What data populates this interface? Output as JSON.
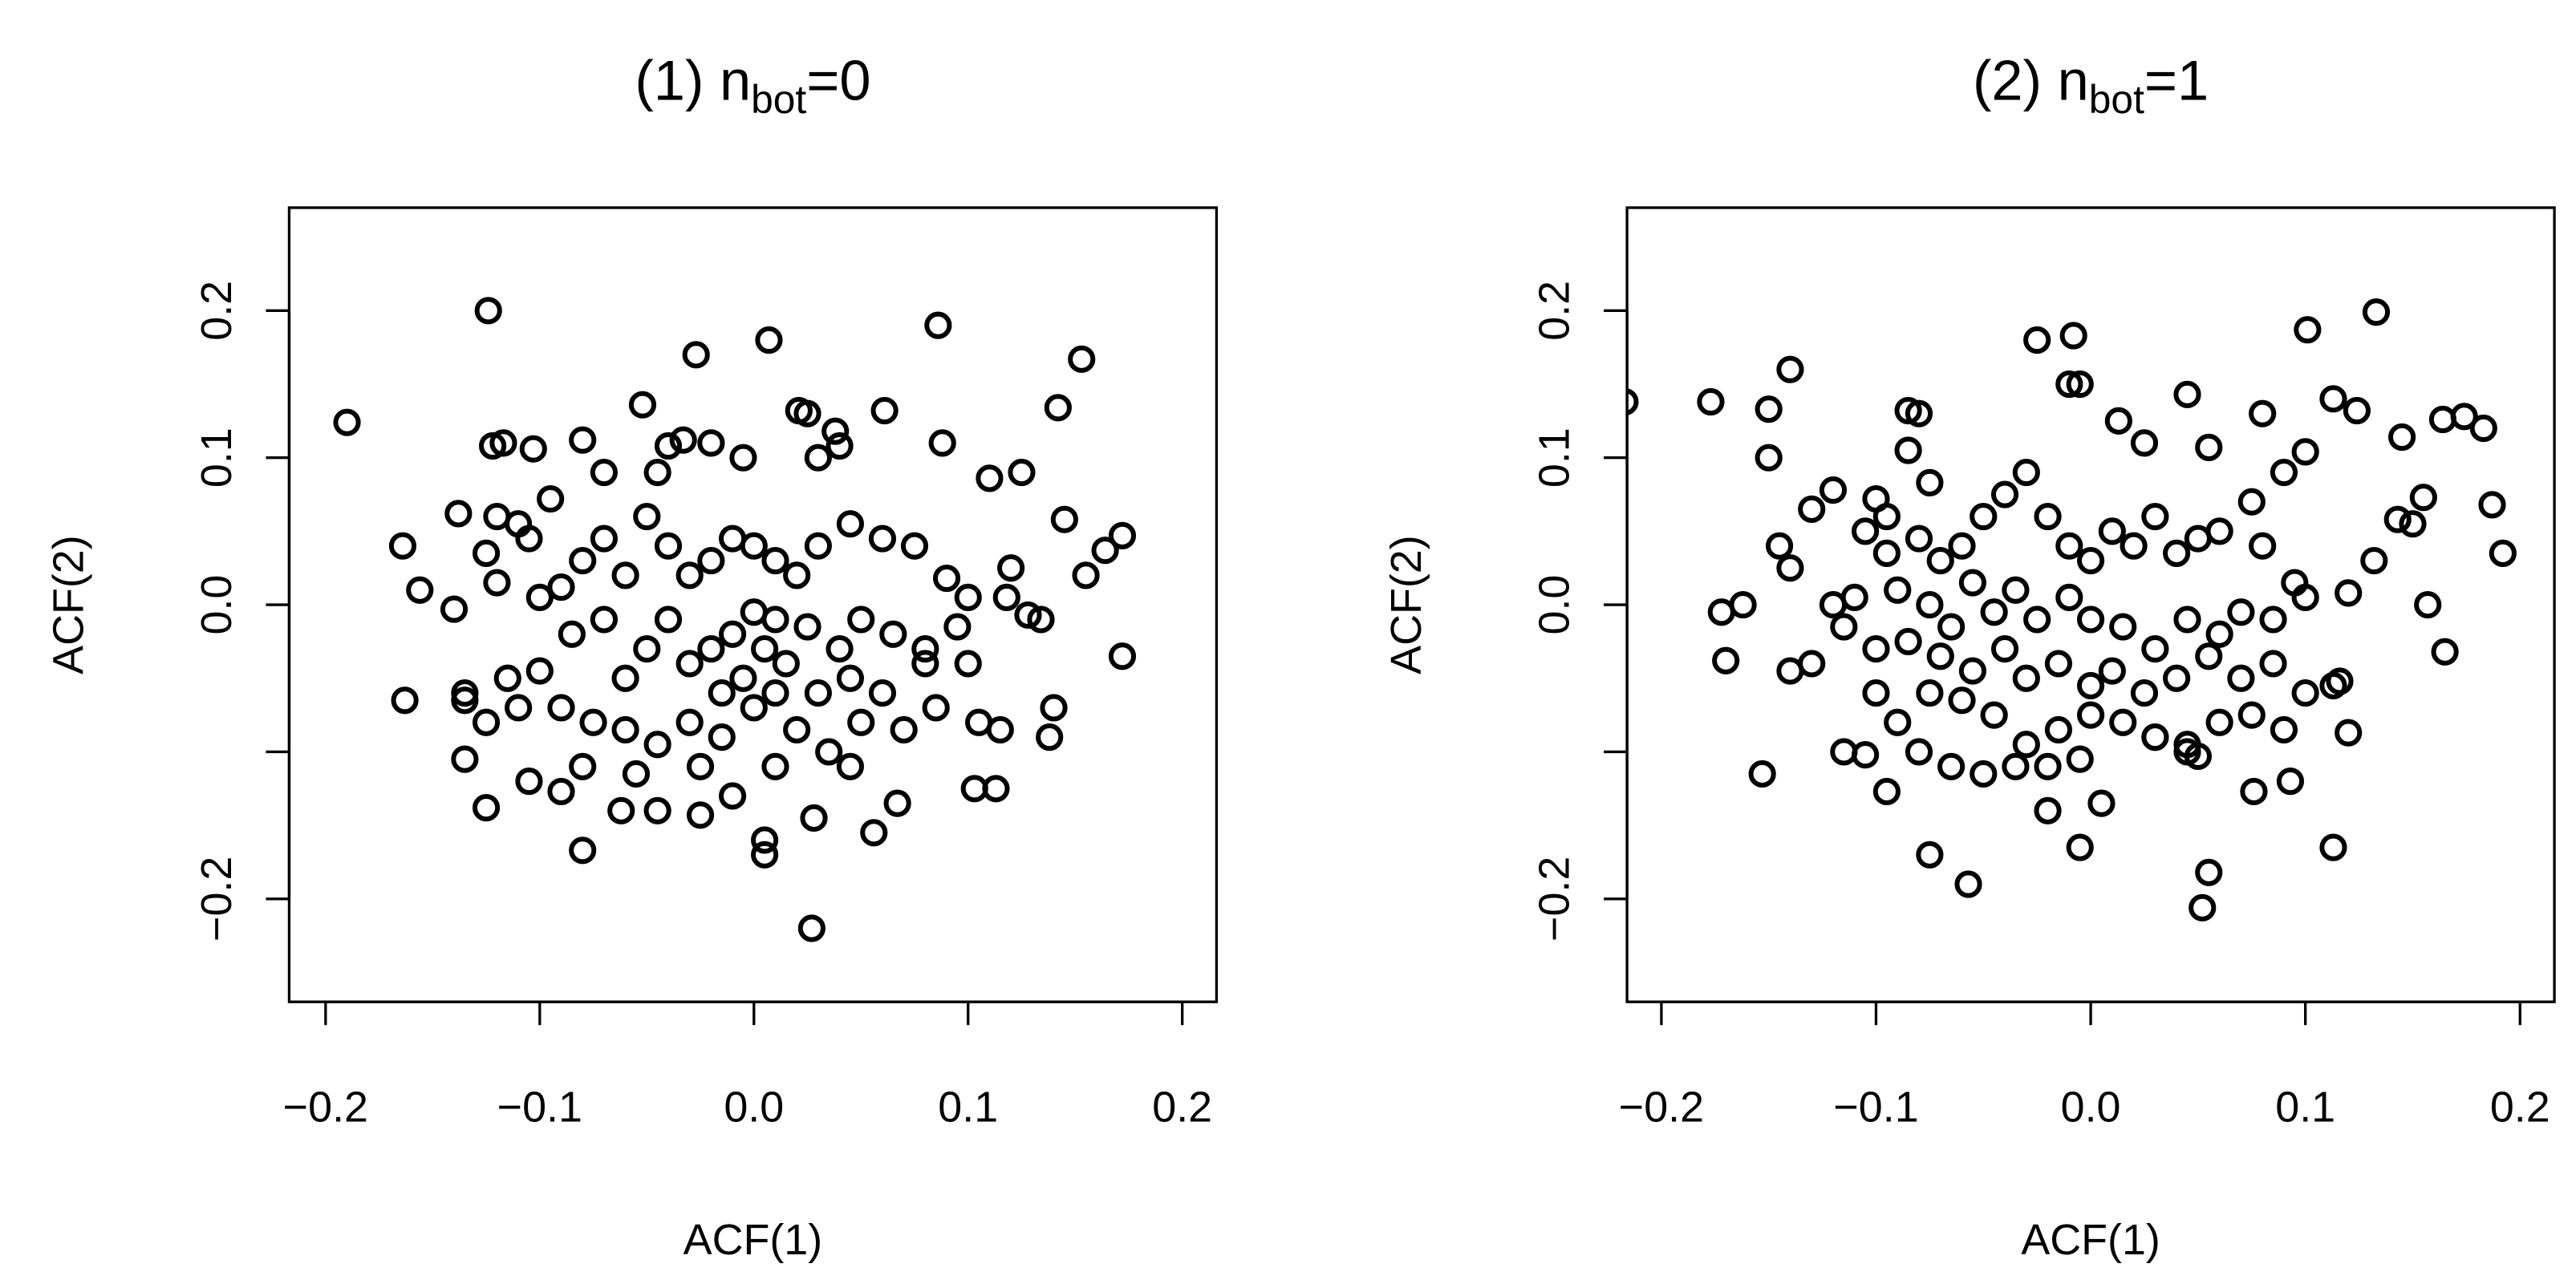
{
  "chart_data": [
    {
      "type": "scatter",
      "title": {
        "prefix": "(1) n",
        "subscript": "bot",
        "suffix": "=0"
      },
      "xlabel": "ACF(1)",
      "ylabel": "ACF(2)",
      "color": "#000000",
      "xlim": [
        -0.217,
        0.216
      ],
      "ylim": [
        -0.27,
        0.27
      ],
      "xticks": [
        {
          "value": -0.2,
          "label": "−0.2"
        },
        {
          "value": -0.1,
          "label": "−0.1"
        },
        {
          "value": 0,
          "label": "0.0"
        },
        0.1,
        0.2
      ],
      "yticks": [
        {
          "value": -0.2,
          "label": "−0.2"
        },
        {
          "value": -0.1,
          "label": null
        },
        {
          "value": 0,
          "label": "0.0"
        },
        0.1,
        0.2
      ],
      "x": [
        -0.19,
        -0.124,
        0.007,
        0.086,
        0.153,
        -0.027,
        0.142,
        0.061,
        0.021,
        0.088,
        0.11,
        0.125,
        0.145,
        0.172,
        0.164,
        0.155,
        0.172,
        0.134,
        0.128,
        0.14,
        0.138,
        0.115,
        0.113,
        0.103,
        0.067,
        0.056,
        0.028,
        0.027,
        0.005,
        0.005,
        -0.08,
        -0.062,
        -0.045,
        -0.025,
        -0.125,
        -0.135,
        -0.105,
        -0.09,
        -0.163,
        -0.135,
        -0.135,
        -0.164,
        -0.156,
        -0.14,
        -0.138,
        -0.122,
        -0.117,
        -0.103,
        -0.08,
        -0.052,
        -0.04,
        -0.033,
        -0.02,
        -0.005,
        0.03,
        0.038,
        0.04,
        0.025,
        -0.07,
        -0.045,
        -0.095,
        -0.11,
        -0.12,
        -0.105,
        -0.125,
        -0.12,
        -0.1,
        -0.09,
        -0.08,
        -0.07,
        -0.06,
        -0.05,
        -0.04,
        -0.03,
        -0.02,
        -0.01,
        0.0,
        0.01,
        0.02,
        0.03,
        0.045,
        0.06,
        0.075,
        0.09,
        0.1,
        0.12,
        0.118,
        0.095,
        0.1,
        0.08,
        0.065,
        0.05,
        0.04,
        0.025,
        0.01,
        0.0,
        -0.01,
        -0.02,
        -0.03,
        -0.04,
        -0.05,
        -0.06,
        -0.07,
        -0.085,
        -0.1,
        -0.115,
        -0.125,
        -0.11,
        -0.09,
        -0.075,
        -0.06,
        -0.045,
        -0.03,
        -0.015,
        0.0,
        0.01,
        0.02,
        0.035,
        0.05,
        0.06,
        0.07,
        0.085,
        0.105,
        0.08,
        0.045,
        0.03,
        0.015,
        0.005,
        -0.005,
        -0.015,
        -0.025,
        -0.01,
        0.01,
        0.045,
        -0.08,
        -0.055
      ],
      "y": [
        0.124,
        0.2,
        0.18,
        0.19,
        0.167,
        0.17,
        0.134,
        0.132,
        0.132,
        0.11,
        0.086,
        0.09,
        0.058,
        0.047,
        0.037,
        0.02,
        -0.035,
        -0.01,
        -0.007,
        -0.07,
        -0.09,
        -0.085,
        -0.125,
        -0.125,
        -0.135,
        -0.155,
        -0.145,
        -0.22,
        -0.17,
        -0.16,
        -0.167,
        -0.14,
        -0.14,
        -0.143,
        -0.138,
        -0.105,
        -0.12,
        -0.127,
        -0.065,
        -0.06,
        -0.065,
        0.04,
        0.01,
        -0.003,
        0.062,
        0.108,
        0.11,
        0.106,
        0.112,
        0.136,
        0.108,
        0.112,
        0.11,
        0.1,
        0.1,
        0.118,
        0.108,
        0.13,
        0.09,
        0.09,
        0.072,
        0.055,
        0.06,
        0.045,
        0.035,
        0.015,
        0.005,
        0.012,
        0.03,
        0.045,
        0.02,
        0.06,
        0.04,
        0.02,
        0.03,
        0.045,
        0.04,
        0.03,
        0.02,
        0.04,
        0.055,
        0.045,
        0.04,
        0.018,
        0.005,
        0.025,
        0.005,
        -0.015,
        -0.04,
        -0.03,
        -0.02,
        -0.01,
        -0.03,
        -0.015,
        -0.01,
        -0.005,
        -0.02,
        -0.03,
        -0.04,
        -0.01,
        -0.03,
        -0.05,
        -0.01,
        -0.02,
        -0.045,
        -0.05,
        -0.08,
        -0.07,
        -0.07,
        -0.08,
        -0.085,
        -0.095,
        -0.08,
        -0.09,
        -0.07,
        -0.06,
        -0.085,
        -0.1,
        -0.08,
        -0.06,
        -0.085,
        -0.07,
        -0.08,
        -0.04,
        -0.05,
        -0.06,
        -0.04,
        -0.03,
        -0.05,
        -0.06,
        -0.11,
        -0.13,
        -0.11,
        -0.11,
        -0.11,
        -0.115
      ]
    },
    {
      "type": "scatter",
      "title": {
        "prefix": "(2) n",
        "subscript": "bot",
        "suffix": "=1"
      },
      "xlabel": "ACF(1)",
      "ylabel": "ACF(2)",
      "color": "#000000",
      "xlim": [
        -0.216,
        0.216
      ],
      "ylim": [
        -0.27,
        0.27
      ],
      "xticks": [
        {
          "value": -0.2,
          "label": "−0.2"
        },
        {
          "value": -0.1,
          "label": "−0.1"
        },
        {
          "value": 0,
          "label": "0.0"
        },
        0.1,
        0.2
      ],
      "yticks": [
        {
          "value": -0.2,
          "label": "−0.2"
        },
        {
          "value": -0.1,
          "label": null
        },
        {
          "value": 0,
          "label": "0.0"
        },
        0.1,
        0.2
      ],
      "x": [
        -0.217,
        -0.177,
        -0.15,
        -0.14,
        -0.15,
        -0.145,
        -0.14,
        -0.172,
        -0.162,
        -0.17,
        -0.14,
        -0.13,
        -0.153,
        -0.115,
        -0.105,
        -0.1,
        -0.095,
        -0.075,
        -0.057,
        0.052,
        0.055,
        0.113,
        0.076,
        0.093,
        0.113,
        0.116,
        0.12,
        0.165,
        0.157,
        0.192,
        0.187,
        0.155,
        0.143,
        0.15,
        0.132,
        0.12,
        0.164,
        0.174,
        0.183,
        0.145,
        0.133,
        0.101,
        0.124,
        0.113,
        0.1,
        0.09,
        0.08,
        0.055,
        0.045,
        0.013,
        0.025,
        -0.025,
        -0.008,
        -0.01,
        -0.005,
        -0.085,
        -0.08,
        -0.085,
        -0.075,
        -0.12,
        -0.13,
        -0.1,
        -0.095,
        -0.105,
        -0.095,
        -0.08,
        -0.07,
        -0.06,
        -0.05,
        -0.04,
        -0.03,
        -0.02,
        -0.01,
        0.0,
        0.01,
        0.02,
        0.03,
        0.04,
        0.05,
        0.06,
        0.075,
        0.08,
        0.095,
        0.1,
        0.085,
        0.07,
        0.06,
        0.045,
        0.03,
        0.015,
        0.0,
        -0.01,
        -0.025,
        -0.035,
        -0.045,
        -0.055,
        -0.065,
        -0.075,
        -0.09,
        -0.11,
        -0.12,
        -0.115,
        -0.1,
        -0.085,
        -0.07,
        -0.055,
        -0.04,
        -0.03,
        -0.015,
        0.0,
        0.01,
        0.025,
        0.04,
        0.055,
        0.07,
        0.085,
        0.1,
        0.09,
        0.075,
        0.06,
        0.045,
        0.03,
        0.015,
        0.0,
        -0.015,
        -0.03,
        -0.045,
        -0.06,
        -0.075,
        -0.09,
        -0.08,
        -0.065,
        -0.05,
        -0.035,
        -0.02,
        -0.005,
        0.005,
        -0.02,
        -0.005,
        0.03,
        0.045,
        0.05
      ],
      "y": [
        0.138,
        0.138,
        0.133,
        0.16,
        0.1,
        0.04,
        0.025,
        -0.005,
        0.0,
        -0.038,
        -0.045,
        -0.04,
        -0.115,
        -0.1,
        -0.102,
        -0.06,
        -0.127,
        -0.17,
        -0.19,
        -0.206,
        -0.182,
        -0.165,
        -0.127,
        -0.12,
        -0.055,
        -0.052,
        -0.087,
        -0.032,
        0.0,
        0.035,
        0.068,
        0.073,
        0.058,
        0.055,
        0.03,
        0.008,
        0.126,
        0.128,
        0.12,
        0.114,
        0.199,
        0.187,
        0.132,
        0.14,
        0.104,
        0.09,
        0.13,
        0.107,
        0.143,
        0.125,
        0.11,
        0.18,
        0.183,
        0.15,
        0.15,
        0.132,
        0.13,
        0.105,
        0.083,
        0.078,
        0.065,
        0.072,
        0.06,
        0.05,
        0.035,
        0.045,
        0.03,
        0.04,
        0.06,
        0.075,
        0.09,
        0.06,
        0.04,
        0.03,
        0.05,
        0.04,
        0.06,
        0.035,
        0.045,
        0.05,
        0.07,
        0.04,
        0.015,
        0.005,
        -0.01,
        -0.005,
        -0.02,
        -0.01,
        -0.03,
        -0.015,
        -0.01,
        0.005,
        -0.01,
        0.01,
        -0.005,
        0.015,
        -0.015,
        0.0,
        0.01,
        0.005,
        0.0,
        -0.015,
        -0.03,
        -0.025,
        -0.035,
        -0.045,
        -0.03,
        -0.05,
        -0.04,
        -0.055,
        -0.045,
        -0.06,
        -0.05,
        -0.035,
        -0.05,
        -0.04,
        -0.06,
        -0.085,
        -0.075,
        -0.08,
        -0.095,
        -0.09,
        -0.08,
        -0.075,
        -0.085,
        -0.095,
        -0.075,
        -0.065,
        -0.06,
        -0.08,
        -0.1,
        -0.11,
        -0.115,
        -0.11,
        -0.11,
        -0.105,
        -0.135,
        -0.14,
        -0.165,
        -0.09,
        -0.1,
        -0.103
      ]
    }
  ]
}
